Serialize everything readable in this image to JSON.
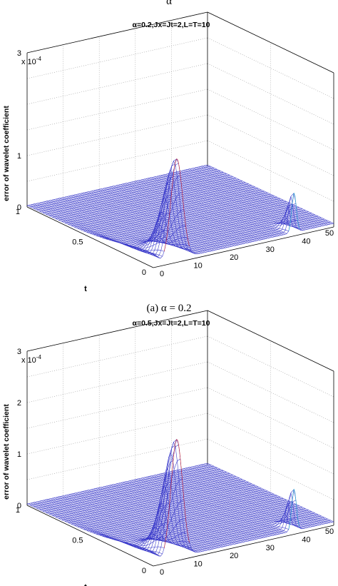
{
  "top_label": "α",
  "figures": [
    {
      "title": "α=0.2,Jx=Jt=2,L=T=10",
      "z_label": "error of wavelet coefficient",
      "z_scale": "x 10",
      "z_scale_exp": "-4",
      "z_ticks": [
        "3",
        "1",
        "0"
      ],
      "t_label": "t",
      "t_ticks": [
        "1",
        "0.5",
        "0"
      ],
      "x_ticks": [
        "0",
        "10",
        "20",
        "30",
        "40",
        "50"
      ],
      "caption": "(a) α = 0.2"
    },
    {
      "title": "α=0.5,Jx=Jt=2,L=T=10",
      "z_label": "error of wavelet coefficient",
      "z_scale": "x 10",
      "z_scale_exp": "-4",
      "z_ticks": [
        "3",
        "2",
        "1",
        "0"
      ],
      "t_label": "t",
      "t_ticks": [
        "1",
        "0.5",
        "0"
      ],
      "x_ticks": [
        "0",
        "10",
        "20",
        "30",
        "40",
        "50"
      ]
    }
  ]
}
